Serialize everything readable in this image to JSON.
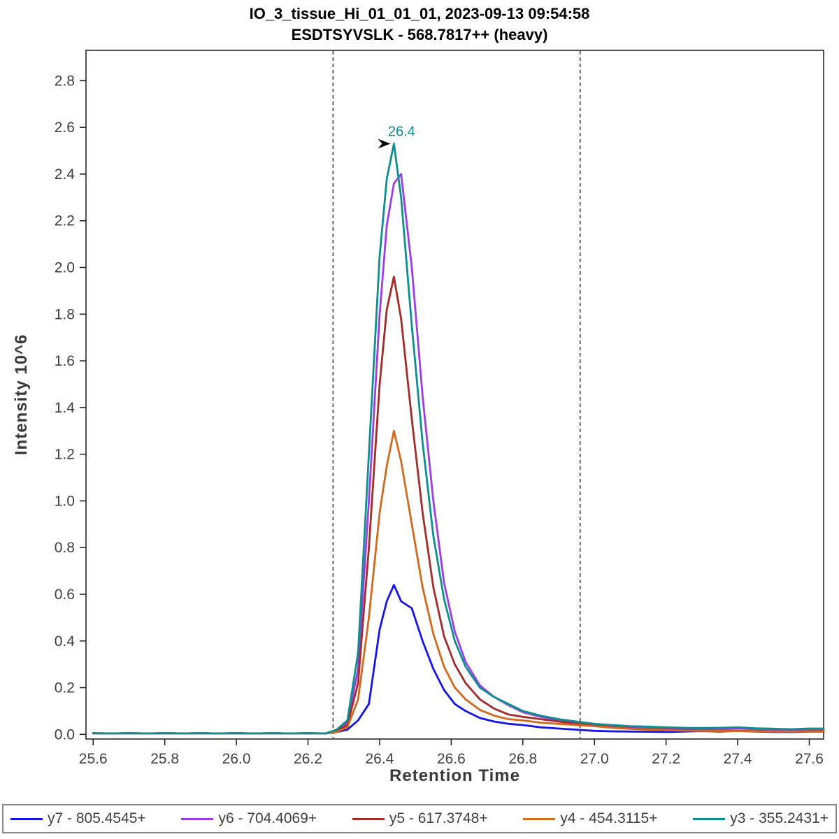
{
  "window": {
    "title_line1": "IO_3_tissue_Hi_01_01_01, 2023-09-13 09:54:58",
    "title_line2": "ESDTSYVSLK - 568.7817++ (heavy)"
  },
  "chart_data": {
    "type": "line",
    "title": "IO_3_tissue_Hi_01_01_01, 2023-09-13 09:54:58",
    "subtitle": "ESDTSYVSLK - 568.7817++ (heavy)",
    "xlabel": "Retention Time",
    "ylabel": "Intensity 10^6",
    "xlim": [
      25.58,
      27.64
    ],
    "ylim": [
      -0.02,
      2.93
    ],
    "x_ticks": [
      25.6,
      25.8,
      26.0,
      26.2,
      26.4,
      26.6,
      26.8,
      27.0,
      27.2,
      27.4,
      27.6
    ],
    "y_ticks": [
      0.0,
      0.2,
      0.4,
      0.6,
      0.8,
      1.0,
      1.2,
      1.4,
      1.6,
      1.8,
      2.0,
      2.2,
      2.4,
      2.6,
      2.8
    ],
    "grid": false,
    "legend_position": "bottom",
    "integration_boundaries": [
      26.27,
      26.96
    ],
    "peak_annotation": {
      "text": "26.4",
      "x": 26.44,
      "y": 2.53,
      "color": "#0b8c8c"
    },
    "x": [
      25.6,
      25.65,
      25.7,
      25.75,
      25.8,
      25.85,
      25.9,
      25.95,
      26.0,
      26.05,
      26.1,
      26.15,
      26.2,
      26.25,
      26.28,
      26.31,
      26.34,
      26.37,
      26.4,
      26.42,
      26.44,
      26.46,
      26.49,
      26.52,
      26.55,
      26.58,
      26.61,
      26.64,
      26.68,
      26.72,
      26.76,
      26.8,
      26.85,
      26.9,
      26.95,
      27.0,
      27.05,
      27.1,
      27.15,
      27.2,
      27.25,
      27.3,
      27.35,
      27.4,
      27.45,
      27.5,
      27.55,
      27.6,
      27.64
    ],
    "series": [
      {
        "name": "y7 - 805.4545+",
        "color": "#1414e8",
        "values": [
          0.005,
          0.004,
          0.005,
          0.004,
          0.005,
          0.004,
          0.005,
          0.004,
          0.005,
          0.004,
          0.005,
          0.004,
          0.005,
          0.004,
          0.01,
          0.02,
          0.06,
          0.13,
          0.45,
          0.57,
          0.64,
          0.57,
          0.54,
          0.4,
          0.28,
          0.19,
          0.13,
          0.1,
          0.07,
          0.055,
          0.045,
          0.04,
          0.03,
          0.025,
          0.02,
          0.015,
          0.013,
          0.012,
          0.011,
          0.01,
          0.012,
          0.014,
          0.012,
          0.015,
          0.012,
          0.01,
          0.01,
          0.012,
          0.012
        ]
      },
      {
        "name": "y6 - 704.4069+",
        "color": "#9b3fe4",
        "values": [
          0.005,
          0.004,
          0.005,
          0.004,
          0.005,
          0.004,
          0.005,
          0.004,
          0.005,
          0.004,
          0.005,
          0.004,
          0.005,
          0.004,
          0.015,
          0.05,
          0.28,
          1.0,
          1.8,
          2.18,
          2.36,
          2.4,
          2.0,
          1.45,
          1.0,
          0.65,
          0.44,
          0.31,
          0.21,
          0.16,
          0.125,
          0.095,
          0.075,
          0.06,
          0.05,
          0.04,
          0.035,
          0.03,
          0.028,
          0.026,
          0.024,
          0.022,
          0.022,
          0.025,
          0.022,
          0.02,
          0.018,
          0.02,
          0.02
        ]
      },
      {
        "name": "y5 - 617.3748+",
        "color": "#a52a2a",
        "values": [
          0.005,
          0.004,
          0.005,
          0.004,
          0.005,
          0.004,
          0.005,
          0.004,
          0.005,
          0.004,
          0.005,
          0.004,
          0.005,
          0.004,
          0.015,
          0.04,
          0.22,
          0.8,
          1.5,
          1.82,
          1.96,
          1.78,
          1.35,
          0.95,
          0.63,
          0.42,
          0.3,
          0.22,
          0.15,
          0.11,
          0.085,
          0.075,
          0.065,
          0.055,
          0.045,
          0.04,
          0.03,
          0.025,
          0.022,
          0.02,
          0.018,
          0.016,
          0.015,
          0.015,
          0.014,
          0.013,
          0.012,
          0.014,
          0.014
        ]
      },
      {
        "name": "y4 - 454.3115+",
        "color": "#d2691e",
        "values": [
          0.005,
          0.004,
          0.005,
          0.004,
          0.005,
          0.004,
          0.005,
          0.004,
          0.005,
          0.004,
          0.005,
          0.004,
          0.005,
          0.004,
          0.01,
          0.03,
          0.15,
          0.5,
          0.95,
          1.15,
          1.3,
          1.17,
          0.9,
          0.63,
          0.43,
          0.29,
          0.2,
          0.15,
          0.105,
          0.08,
          0.065,
          0.06,
          0.05,
          0.045,
          0.04,
          0.035,
          0.028,
          0.024,
          0.02,
          0.018,
          0.016,
          0.015,
          0.014,
          0.014,
          0.013,
          0.012,
          0.012,
          0.013,
          0.013
        ]
      },
      {
        "name": "y3 - 355.2431+",
        "color": "#0e8f8f",
        "values": [
          0.005,
          0.004,
          0.005,
          0.004,
          0.005,
          0.004,
          0.005,
          0.004,
          0.005,
          0.004,
          0.005,
          0.004,
          0.005,
          0.004,
          0.02,
          0.06,
          0.35,
          1.2,
          2.05,
          2.38,
          2.53,
          2.3,
          1.75,
          1.25,
          0.85,
          0.58,
          0.4,
          0.29,
          0.2,
          0.16,
          0.13,
          0.1,
          0.08,
          0.065,
          0.055,
          0.045,
          0.04,
          0.035,
          0.033,
          0.03,
          0.028,
          0.027,
          0.028,
          0.03,
          0.026,
          0.024,
          0.022,
          0.025,
          0.025
        ]
      }
    ]
  },
  "style": {
    "axis_color": "#1a1a1a",
    "tick_label_color": "#3f3f3f",
    "boundary_line_color": "#333333",
    "annotation_arrow_color": "#000000"
  }
}
